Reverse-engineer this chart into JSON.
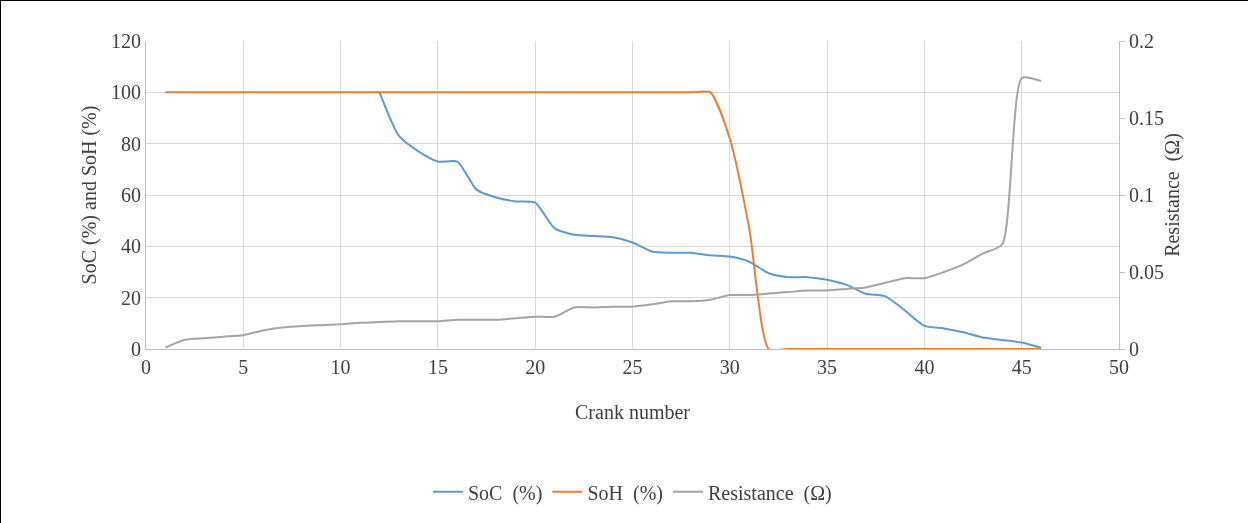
{
  "chart_data": {
    "type": "line",
    "xlabel": "Crank number",
    "ylabel": "SoC (%) and SoH (%)",
    "y2label": "Resistance  (Ω)",
    "x": [
      1,
      2,
      3,
      4,
      5,
      6,
      7,
      8,
      9,
      10,
      11,
      12,
      13,
      14,
      15,
      16,
      17,
      18,
      19,
      20,
      21,
      22,
      23,
      24,
      25,
      26,
      27,
      28,
      29,
      30,
      31,
      32,
      33,
      34,
      35,
      36,
      37,
      38,
      39,
      40,
      41,
      42,
      43,
      44,
      45,
      46
    ],
    "series": [
      {
        "name": "SoC  (%)",
        "color": "#5b9bd5",
        "values": [
          null,
          null,
          null,
          null,
          null,
          null,
          null,
          null,
          null,
          null,
          null,
          100,
          83,
          77,
          73,
          73,
          62,
          59,
          57.5,
          57,
          47,
          44.5,
          44,
          43.5,
          41.5,
          38,
          37.5,
          37.5,
          36.5,
          36,
          34,
          29.5,
          28,
          28,
          27,
          25,
          21.5,
          20.5,
          15,
          9,
          8,
          6.5,
          4.5,
          3.5,
          2.5,
          0.5
        ]
      },
      {
        "name": "SoH  (%)",
        "color": "#ed7d31",
        "values": [
          100,
          100,
          100,
          100,
          100,
          100,
          100,
          100,
          100,
          100,
          100,
          100,
          100,
          100,
          100,
          100,
          100,
          100,
          100,
          100,
          100,
          100,
          100,
          100,
          100,
          100,
          100,
          100,
          100,
          82,
          47,
          0,
          0,
          0,
          0,
          0,
          0,
          0,
          0,
          0,
          0,
          0,
          0,
          0,
          0,
          0
        ]
      },
      {
        "name": "Resistance  (Ω)",
        "color": "#a5a5a5",
        "axis": "y2",
        "values": [
          0.001,
          0.006,
          0.007,
          0.008,
          0.009,
          0.012,
          0.014,
          0.015,
          0.0155,
          0.016,
          0.017,
          0.0175,
          0.018,
          0.018,
          0.018,
          0.019,
          0.019,
          0.019,
          0.02,
          0.021,
          0.021,
          0.027,
          0.027,
          0.0275,
          0.0275,
          0.029,
          0.031,
          0.031,
          0.032,
          0.035,
          0.035,
          0.036,
          0.037,
          0.038,
          0.038,
          0.039,
          0.04,
          0.043,
          0.046,
          0.046,
          0.05,
          0.055,
          0.062,
          0.068,
          0.176,
          0.174
        ]
      }
    ],
    "xlim": [
      0,
      50
    ],
    "xticks": [
      0,
      5,
      10,
      15,
      20,
      25,
      30,
      35,
      40,
      45,
      50
    ],
    "ylim": [
      0,
      120
    ],
    "yticks": [
      0,
      20,
      40,
      60,
      80,
      100,
      120
    ],
    "y2lim": [
      0,
      0.2
    ],
    "y2ticks": [
      0,
      0.05,
      0.1,
      0.15,
      0.2
    ],
    "grid": true,
    "legend": "bottom",
    "marker": "none",
    "line_style": "solid"
  }
}
